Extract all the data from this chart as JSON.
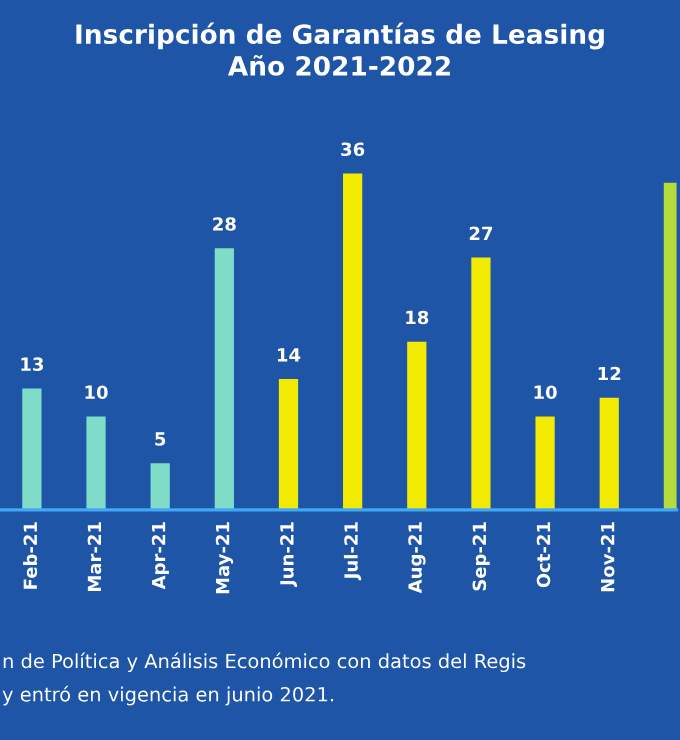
{
  "chart_data": {
    "type": "bar",
    "title": "Inscripción de Garantías de Leasing\nAño 2021-2022",
    "categories": [
      "Feb-21",
      "Mar-21",
      "Apr-21",
      "May-21",
      "Jun-21",
      "Jul-21",
      "Aug-21",
      "Sep-21",
      "Oct-21",
      "Nov-21",
      null
    ],
    "values": [
      13,
      10,
      5,
      28,
      14,
      36,
      18,
      27,
      10,
      12,
      35
    ],
    "colors": [
      "#7fdcc8",
      "#7fdcc8",
      "#7fdcc8",
      "#7fdcc8",
      "#f2ea00",
      "#f2ea00",
      "#f2ea00",
      "#f2ea00",
      "#f2ea00",
      "#f2ea00",
      "#b5dc3a"
    ],
    "value_labels": [
      "13",
      "10",
      "5",
      "28",
      "14",
      "36",
      "18",
      "27",
      "10",
      "12",
      null
    ],
    "annotations": [
      "n de Política y Análisis Económico con datos del Regis",
      "y entró en vigencia en junio 2021."
    ],
    "grid": false,
    "legend": false
  }
}
